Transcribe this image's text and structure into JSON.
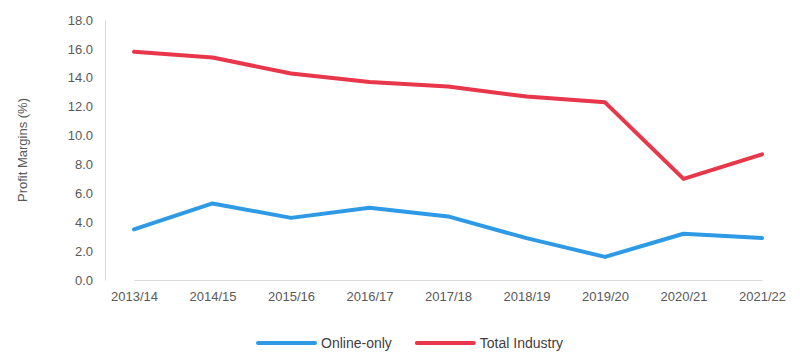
{
  "chart_data": {
    "type": "line",
    "y_label": "Profit Margins (%)",
    "categories": [
      "2013/14",
      "2014/15",
      "2015/16",
      "2016/17",
      "2017/18",
      "2018/19",
      "2019/20",
      "2020/21",
      "2021/22"
    ],
    "series": [
      {
        "name": "Online-only",
        "color": "#2e9ae6",
        "values": [
          3.5,
          5.3,
          4.3,
          5.0,
          4.4,
          2.9,
          1.6,
          3.2,
          2.9
        ]
      },
      {
        "name": "Total Industry",
        "color": "#e8364a",
        "values": [
          15.8,
          15.4,
          14.3,
          13.7,
          13.4,
          12.7,
          12.3,
          7.0,
          8.7
        ]
      }
    ],
    "ylim": [
      0,
      18
    ],
    "yticks": [
      {
        "value": 0,
        "label": "0.0"
      },
      {
        "value": 2,
        "label": "2.0"
      },
      {
        "value": 4,
        "label": "4.0"
      },
      {
        "value": 6,
        "label": "6.0"
      },
      {
        "value": 8,
        "label": "8.0"
      },
      {
        "value": 10,
        "label": "10.0"
      },
      {
        "value": 12,
        "label": "12.0"
      },
      {
        "value": 14,
        "label": "14.0"
      },
      {
        "value": 16,
        "label": "16.0"
      },
      {
        "value": 18,
        "label": "18.0"
      }
    ],
    "grid": false,
    "legend": "bottom"
  }
}
